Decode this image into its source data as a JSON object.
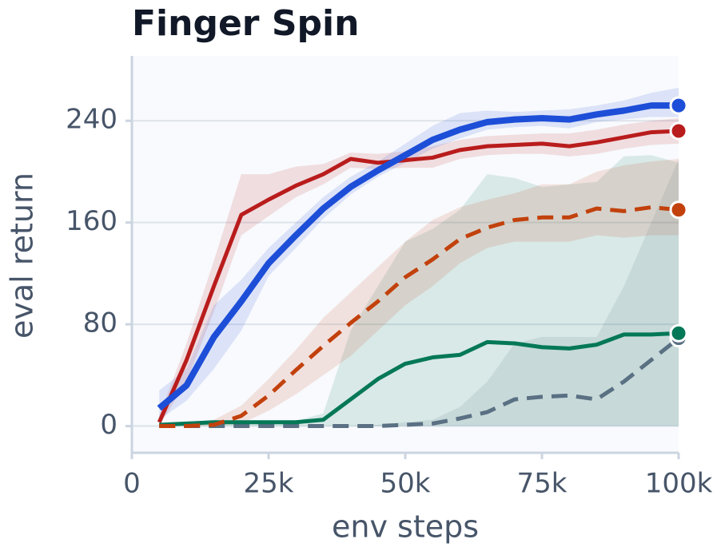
{
  "chart_data": {
    "type": "line",
    "title": "Finger Spin",
    "xlabel": "env steps",
    "ylabel": "eval return",
    "x": [
      5000,
      10000,
      15000,
      20000,
      25000,
      30000,
      35000,
      40000,
      45000,
      50000,
      55000,
      60000,
      65000,
      70000,
      75000,
      80000,
      85000,
      90000,
      95000,
      100000
    ],
    "xlim": [
      0,
      100000
    ],
    "ylim": [
      -21,
      291
    ],
    "xticks": [
      0,
      {
        "value": 25000,
        "label": "25k"
      },
      {
        "value": 50000,
        "label": "50k"
      },
      {
        "value": 75000,
        "label": "75k"
      },
      {
        "value": 100000,
        "label": "100k"
      }
    ],
    "yticks": [
      0,
      80,
      160,
      240
    ],
    "grid": true,
    "series": [
      {
        "color": "#5a7083",
        "dash": true,
        "linewidth": 5,
        "values": [
          0,
          0,
          0,
          0,
          0,
          0,
          0,
          0,
          0,
          1,
          2,
          6,
          11,
          21,
          23,
          24,
          21,
          35,
          52,
          69
        ],
        "lower": [
          0,
          0,
          0,
          0,
          0,
          0,
          0,
          0,
          0,
          0,
          0,
          0,
          0,
          0,
          0,
          0,
          0,
          0,
          0,
          0
        ],
        "upper": [
          0,
          0,
          0,
          0,
          0,
          0,
          0,
          0,
          1,
          3,
          5,
          15,
          35,
          65,
          70,
          70,
          70,
          110,
          160,
          210
        ]
      },
      {
        "color": "#047857",
        "dash": false,
        "linewidth": 5,
        "values": [
          1,
          2,
          3,
          3,
          3,
          3,
          5,
          21,
          37,
          49,
          54,
          56,
          66,
          65,
          62,
          61,
          64,
          72,
          72,
          73
        ],
        "lower": [
          0,
          0,
          0,
          0,
          0,
          0,
          0,
          0,
          0,
          0,
          0,
          0,
          0,
          0,
          0,
          0,
          0,
          0,
          0,
          0
        ],
        "upper": [
          2,
          3,
          4,
          4,
          4,
          4,
          10,
          75,
          110,
          145,
          155,
          170,
          198,
          195,
          188,
          190,
          192,
          212,
          213,
          207
        ]
      },
      {
        "color": "#c2410c",
        "dash": true,
        "linewidth": 5,
        "values": [
          0,
          0,
          1,
          8,
          24,
          44,
          63,
          81,
          98,
          117,
          131,
          147,
          156,
          162,
          164,
          164,
          171,
          169,
          172,
          170
        ],
        "lower": [
          0,
          0,
          0,
          2,
          12,
          25,
          40,
          55,
          75,
          95,
          110,
          128,
          140,
          145,
          145,
          145,
          150,
          148,
          150,
          150
        ],
        "upper": [
          1,
          2,
          5,
          16,
          37,
          60,
          85,
          105,
          125,
          145,
          162,
          172,
          178,
          183,
          190,
          190,
          200,
          205,
          208,
          210
        ]
      },
      {
        "color": "#b91c1c",
        "dash": false,
        "linewidth": 5,
        "values": [
          3,
          52,
          110,
          166,
          178,
          189,
          198,
          210,
          207,
          209,
          211,
          217,
          220,
          221,
          222,
          220,
          223,
          227,
          231,
          232
        ],
        "lower": [
          0,
          35,
          90,
          150,
          165,
          180,
          190,
          203,
          202,
          203,
          203,
          210,
          213,
          214,
          214,
          212,
          214,
          218,
          221,
          222
        ],
        "upper": [
          8,
          65,
          130,
          198,
          198,
          204,
          206,
          215,
          214,
          216,
          220,
          225,
          228,
          229,
          230,
          230,
          233,
          237,
          240,
          242
        ]
      },
      {
        "color": "#1d4ed8",
        "dash": false,
        "linewidth": 8,
        "values": [
          14,
          32,
          70,
          98,
          128,
          150,
          171,
          188,
          201,
          213,
          225,
          233,
          239,
          241,
          242,
          241,
          245,
          248,
          252,
          252
        ],
        "lower": [
          5,
          20,
          45,
          75,
          118,
          140,
          163,
          182,
          196,
          207,
          218,
          226,
          233,
          235,
          236,
          234,
          239,
          241,
          243,
          243
        ],
        "upper": [
          28,
          45,
          95,
          115,
          140,
          160,
          180,
          196,
          208,
          222,
          236,
          246,
          248,
          247,
          248,
          249,
          252,
          256,
          262,
          266
        ]
      }
    ]
  }
}
